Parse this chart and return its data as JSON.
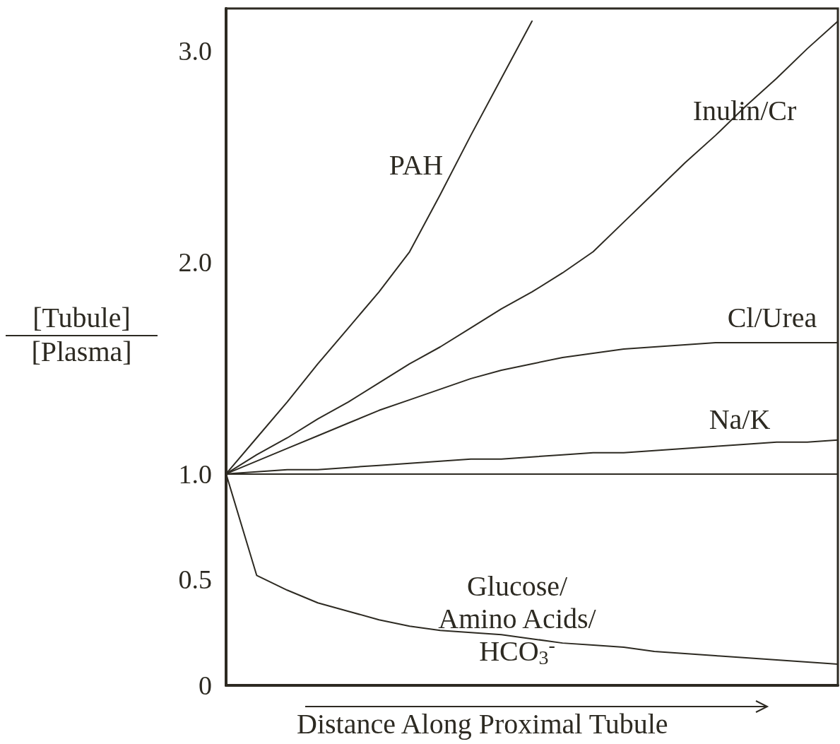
{
  "chart_data": {
    "type": "line",
    "xlabel": "Distance Along Proximal Tubule",
    "ylabel": "[Tubule]\n[Plasma]",
    "categories": [
      null,
      null,
      null,
      null,
      null,
      null,
      null,
      null,
      null,
      null,
      null,
      null,
      null,
      null,
      null,
      null,
      null,
      null,
      null,
      null,
      null
    ],
    "ylim": [
      0,
      3.2
    ],
    "yticks": [
      {
        "value": 0,
        "label": "0"
      },
      0.5,
      {
        "value": 1,
        "label": "1.0"
      },
      {
        "value": 2,
        "label": "2.0"
      },
      {
        "value": 3,
        "label": "3.0"
      }
    ],
    "marker": "none",
    "line_style": "solid",
    "series": [
      {
        "color": "#2d2a22",
        "values": [
          1.0,
          1.17,
          1.34,
          1.52,
          1.69,
          1.86,
          2.05,
          2.32,
          2.6,
          2.87,
          3.14,
          null,
          null,
          null,
          null,
          null,
          null,
          null,
          null,
          null,
          null
        ]
      },
      {
        "color": "#2d2a22",
        "values": [
          1.0,
          1.09,
          1.17,
          1.26,
          1.34,
          1.43,
          1.52,
          1.6,
          1.69,
          1.78,
          1.86,
          1.95,
          2.05,
          2.19,
          2.33,
          2.47,
          2.6,
          2.74,
          2.87,
          3.01,
          3.14
        ]
      },
      {
        "color": "#2d2a22",
        "values": [
          1.0,
          1.06,
          1.12,
          1.18,
          1.24,
          1.3,
          1.35,
          1.4,
          1.45,
          1.49,
          1.52,
          1.55,
          1.57,
          1.59,
          1.6,
          1.61,
          1.62,
          1.62,
          1.62,
          1.62,
          1.62
        ]
      },
      {
        "color": "#2d2a22",
        "values": [
          1.0,
          1.01,
          1.02,
          1.02,
          1.03,
          1.04,
          1.05,
          1.06,
          1.07,
          1.07,
          1.08,
          1.09,
          1.1,
          1.1,
          1.11,
          1.12,
          1.13,
          1.14,
          1.15,
          1.15,
          1.16
        ]
      },
      {
        "color": "#2d2a22",
        "values": [
          1.0,
          0.52,
          0.45,
          0.39,
          0.35,
          0.31,
          0.28,
          0.26,
          0.25,
          0.24,
          0.22,
          0.2,
          0.19,
          0.18,
          0.16,
          0.15,
          0.14,
          0.13,
          0.12,
          0.11,
          0.1
        ]
      }
    ],
    "ref_lines": [
      {
        "axis": "y",
        "value": 1.0,
        "color": "#2d2a22"
      }
    ],
    "annotations": [
      "PAH",
      "Inulin/Cr",
      "Cl/Urea",
      "Na/K",
      "Glucose/\nAmino Acids/\nHCO$_{3}$$^{-}$"
    ]
  }
}
